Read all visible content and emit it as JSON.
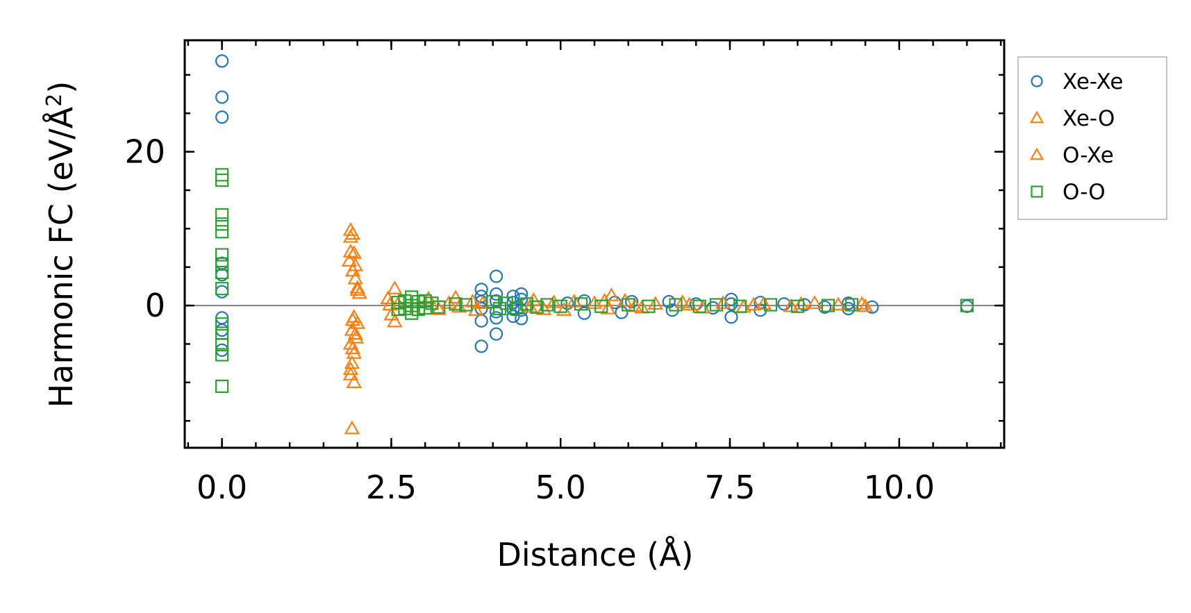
{
  "chart_data": {
    "type": "scatter",
    "title": "",
    "xlabel": "Distance (Å)",
    "ylabel": "Harmonic FC (eV/Å",
    "ylabel_superscript": "2",
    "ylabel_suffix": ")",
    "xlim": [
      -0.55,
      11.55
    ],
    "ylim": [
      -18.5,
      34.5
    ],
    "xticks": [
      0.0,
      2.5,
      5.0,
      7.5,
      10.0
    ],
    "xtick_labels": [
      "0.0",
      "2.5",
      "5.0",
      "7.5",
      "10.0"
    ],
    "xminor_step": 0.5,
    "yticks": [
      0,
      20
    ],
    "ytick_labels": [
      "0",
      "20"
    ],
    "yminor_step": 5,
    "zero_line": true,
    "legend_position": "outside-right-top",
    "series": [
      {
        "name": "Xe-Xe",
        "marker": "circle",
        "color": "#1f77b4",
        "points": [
          [
            0.0,
            31.8
          ],
          [
            0.0,
            27.1
          ],
          [
            0.0,
            24.5
          ],
          [
            0.0,
            5.5
          ],
          [
            0.0,
            4.0
          ],
          [
            0.0,
            1.8
          ],
          [
            0.0,
            -1.6
          ],
          [
            0.0,
            -3.2
          ],
          [
            0.0,
            -5.8
          ],
          [
            3.83,
            2.1
          ],
          [
            3.83,
            1.2
          ],
          [
            3.83,
            0.5
          ],
          [
            3.83,
            -0.4
          ],
          [
            3.83,
            -2.0
          ],
          [
            3.83,
            -5.3
          ],
          [
            4.05,
            3.8
          ],
          [
            4.05,
            1.5
          ],
          [
            4.05,
            0.6
          ],
          [
            4.05,
            -0.8
          ],
          [
            4.05,
            -1.6
          ],
          [
            4.05,
            -3.7
          ],
          [
            4.3,
            1.2
          ],
          [
            4.3,
            0.4
          ],
          [
            4.3,
            -0.5
          ],
          [
            4.3,
            -1.4
          ],
          [
            4.42,
            1.5
          ],
          [
            4.42,
            0.8
          ],
          [
            4.42,
            -0.6
          ],
          [
            4.42,
            -1.7
          ],
          [
            5.1,
            0.3
          ],
          [
            5.35,
            0.6
          ],
          [
            5.35,
            -1.0
          ],
          [
            5.8,
            0.4
          ],
          [
            5.9,
            -0.9
          ],
          [
            6.05,
            0.5
          ],
          [
            6.6,
            0.5
          ],
          [
            6.65,
            -0.6
          ],
          [
            7.0,
            0.2
          ],
          [
            7.25,
            -0.3
          ],
          [
            7.52,
            0.8
          ],
          [
            7.52,
            0.2
          ],
          [
            7.52,
            -1.5
          ],
          [
            7.95,
            0.4
          ],
          [
            7.95,
            -0.6
          ],
          [
            8.3,
            0.2
          ],
          [
            8.6,
            0.1
          ],
          [
            8.9,
            -0.2
          ],
          [
            9.25,
            0.3
          ],
          [
            9.25,
            -0.4
          ],
          [
            9.6,
            -0.2
          ],
          [
            11.0,
            -0.1
          ]
        ]
      },
      {
        "name": "Xe-O",
        "marker": "triangle",
        "color": "#ff7f0e",
        "points": [
          [
            1.9,
            9.8
          ],
          [
            1.9,
            8.9
          ],
          [
            1.95,
            6.8
          ],
          [
            1.88,
            5.8
          ],
          [
            1.93,
            4.5
          ],
          [
            1.97,
            3.5
          ],
          [
            2.0,
            2.3
          ],
          [
            2.03,
            1.6
          ],
          [
            1.95,
            -1.5
          ],
          [
            2.0,
            -2.3
          ],
          [
            1.92,
            -3.2
          ],
          [
            1.98,
            -4.2
          ],
          [
            1.9,
            -5.0
          ],
          [
            1.95,
            -6.2
          ],
          [
            1.92,
            -7.5
          ],
          [
            1.9,
            -9.0
          ],
          [
            1.95,
            -10.0
          ],
          [
            1.92,
            -16.0
          ],
          [
            2.45,
            0.9
          ],
          [
            2.55,
            2.2
          ],
          [
            2.5,
            -1.2
          ],
          [
            2.55,
            -2.1
          ],
          [
            2.6,
            0.2
          ],
          [
            3.05,
            0.9
          ],
          [
            3.2,
            -0.5
          ],
          [
            3.35,
            0.3
          ],
          [
            3.45,
            1.0
          ],
          [
            3.7,
            0.5
          ],
          [
            3.75,
            -0.6
          ],
          [
            4.6,
            0.7
          ],
          [
            4.75,
            -0.5
          ],
          [
            4.9,
            0.4
          ],
          [
            5.05,
            -0.6
          ],
          [
            5.2,
            0.5
          ],
          [
            5.5,
            0.3
          ],
          [
            5.7,
            -0.4
          ],
          [
            5.75,
            1.3
          ],
          [
            5.95,
            0.6
          ],
          [
            6.2,
            -0.3
          ],
          [
            6.4,
            0.2
          ],
          [
            6.8,
            0.4
          ],
          [
            7.1,
            -0.3
          ],
          [
            7.4,
            0.3
          ],
          [
            7.7,
            -0.2
          ],
          [
            8.0,
            0.2
          ],
          [
            8.4,
            -0.1
          ],
          [
            8.75,
            0.3
          ],
          [
            9.1,
            0.1
          ],
          [
            9.45,
            0.2
          ]
        ]
      },
      {
        "name": "O-Xe",
        "marker": "triangle",
        "color": "#ff7f0e",
        "points": [
          [
            1.93,
            9.3
          ],
          [
            1.9,
            7.0
          ],
          [
            1.97,
            5.2
          ],
          [
            2.0,
            2.0
          ],
          [
            1.93,
            -1.9
          ],
          [
            1.97,
            -3.7
          ],
          [
            1.93,
            -5.6
          ],
          [
            1.9,
            -8.3
          ],
          [
            2.48,
            0.1
          ],
          [
            3.5,
            -0.2
          ],
          [
            3.85,
            0.3
          ],
          [
            4.55,
            -0.2
          ],
          [
            5.65,
            0.6
          ],
          [
            6.1,
            -0.1
          ],
          [
            6.9,
            0.1
          ],
          [
            7.85,
            0.1
          ],
          [
            8.55,
            0.2
          ],
          [
            9.5,
            -0.1
          ]
        ]
      },
      {
        "name": "O-O",
        "marker": "square",
        "color": "#2ca02c",
        "points": [
          [
            0.0,
            17.0
          ],
          [
            0.0,
            16.3
          ],
          [
            0.0,
            11.8
          ],
          [
            0.0,
            10.6
          ],
          [
            0.0,
            9.6
          ],
          [
            0.0,
            6.6
          ],
          [
            0.0,
            5.4
          ],
          [
            0.0,
            4.3
          ],
          [
            0.0,
            2.2
          ],
          [
            0.0,
            -2.4
          ],
          [
            0.0,
            -3.6
          ],
          [
            0.0,
            -5.1
          ],
          [
            0.0,
            -6.4
          ],
          [
            0.0,
            -10.5
          ],
          [
            2.6,
            0.4
          ],
          [
            2.6,
            -0.5
          ],
          [
            2.7,
            0.6
          ],
          [
            2.7,
            -0.4
          ],
          [
            2.8,
            1.1
          ],
          [
            2.8,
            0.0
          ],
          [
            2.8,
            -1.0
          ],
          [
            2.9,
            0.5
          ],
          [
            2.9,
            -0.5
          ],
          [
            3.0,
            0.6
          ],
          [
            3.0,
            -0.3
          ],
          [
            3.1,
            0.3
          ],
          [
            3.2,
            -0.2
          ],
          [
            3.45,
            0.2
          ],
          [
            3.6,
            0.1
          ],
          [
            4.0,
            0.5
          ],
          [
            4.1,
            -0.4
          ],
          [
            4.2,
            0.3
          ],
          [
            4.35,
            -0.3
          ],
          [
            4.5,
            0.2
          ],
          [
            4.65,
            -0.2
          ],
          [
            4.8,
            0.1
          ],
          [
            5.0,
            -0.1
          ],
          [
            5.3,
            0.2
          ],
          [
            5.6,
            -0.1
          ],
          [
            6.0,
            0.1
          ],
          [
            6.3,
            -0.1
          ],
          [
            6.7,
            0.1
          ],
          [
            7.05,
            -0.1
          ],
          [
            7.3,
            0.1
          ],
          [
            7.65,
            -0.1
          ],
          [
            8.1,
            0.1
          ],
          [
            8.5,
            -0.1
          ],
          [
            8.95,
            0.0
          ],
          [
            9.3,
            0.1
          ],
          [
            11.0,
            0.0
          ]
        ]
      }
    ]
  }
}
